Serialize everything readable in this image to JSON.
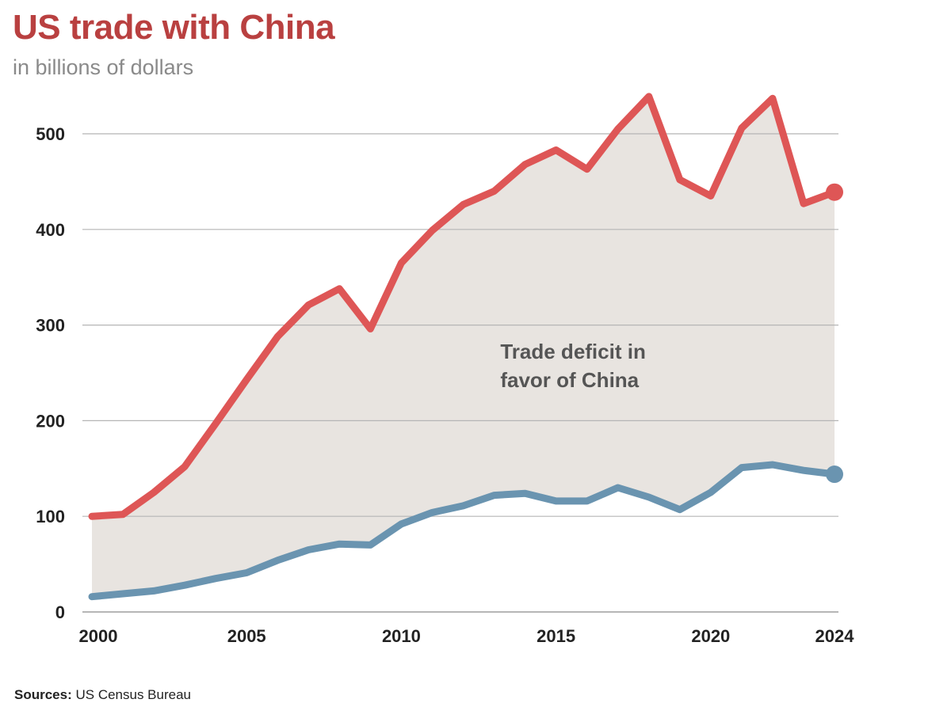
{
  "header": {
    "title": "US trade with China",
    "subtitle": "in billions of dollars"
  },
  "footer": {
    "source_label": "Sources:",
    "source_text": "US Census Bureau"
  },
  "colors": {
    "title": "#b94040",
    "imports": "#de5656",
    "exports": "#6a94b0",
    "fill": "#e8e4e0",
    "grid": "#b5b5b5"
  },
  "chart_data": {
    "type": "line",
    "title": "US trade with China",
    "subtitle": "in billions of dollars",
    "xlabel": "",
    "ylabel": "",
    "xlim": [
      2000,
      2024
    ],
    "ylim": [
      0,
      500
    ],
    "grid": true,
    "legend": "none",
    "x": [
      2000,
      2001,
      2002,
      2003,
      2004,
      2005,
      2006,
      2007,
      2008,
      2009,
      2010,
      2011,
      2012,
      2013,
      2014,
      2015,
      2016,
      2017,
      2018,
      2019,
      2020,
      2021,
      2022,
      2023,
      2024
    ],
    "x_ticks": [
      "2000",
      "2005",
      "2010",
      "2015",
      "2020",
      "2024"
    ],
    "x_tick_values": [
      2000,
      2005,
      2010,
      2015,
      2020,
      2024
    ],
    "y_ticks": [
      "0",
      "100",
      "200",
      "300",
      "400",
      "500"
    ],
    "y_tick_values": [
      0,
      100,
      200,
      300,
      400,
      500
    ],
    "series": [
      {
        "key": "imports",
        "values": [
          100,
          102,
          125,
          152,
          197,
          243,
          288,
          321,
          338,
          296,
          365,
          399,
          426,
          440,
          468,
          483,
          463,
          505,
          539,
          452,
          435,
          506,
          537,
          427,
          439
        ]
      },
      {
        "key": "exports",
        "values": [
          16,
          19,
          22,
          28,
          35,
          41,
          54,
          65,
          71,
          70,
          92,
          104,
          111,
          122,
          124,
          116,
          116,
          130,
          120,
          107,
          125,
          151,
          154,
          148,
          144
        ]
      }
    ],
    "fill_between": true,
    "annotations": [
      {
        "text": "Trade deficit in",
        "x": 2013.2,
        "y": 265
      },
      {
        "text": "favor of China",
        "x": 2013.2,
        "y": 235
      }
    ]
  }
}
